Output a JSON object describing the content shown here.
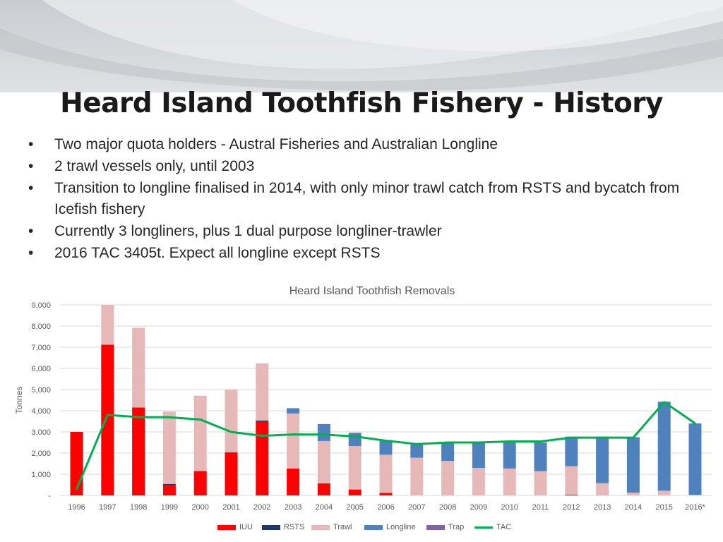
{
  "slide": {
    "title": "Heard Island Toothfish Fishery - History",
    "bullet_glyph": "•",
    "bullets": [
      "Two major quota holders - Austral Fisheries and Australian Longline",
      "2 trawl vessels only, until 2003",
      "Transition to longline finalised in 2014, with only minor trawl catch from RSTS and bycatch from Icefish fishery",
      "Currently 3 longliners, plus 1 dual purpose longliner-trawler",
      "2016 TAC 3405t.  Expect all longline except RSTS"
    ]
  },
  "chart_data": {
    "type": "bar",
    "stacked": true,
    "title": "Heard Island Toothfish Removals",
    "ylabel": "Tonnes",
    "xlabel": "",
    "ylim": [
      0,
      9000
    ],
    "yticks": [
      "-",
      "1,000",
      "2,000",
      "3,000",
      "4,000",
      "5,000",
      "6,000",
      "7,000",
      "8,000",
      "9,000"
    ],
    "grid": true,
    "legend_position": "bottom",
    "categories": [
      "1996",
      "1997",
      "1998",
      "1999",
      "2000",
      "2001",
      "2002",
      "2003",
      "2004",
      "2005",
      "2006",
      "2007",
      "2008",
      "2009",
      "2010",
      "2011",
      "2012",
      "2013",
      "2014",
      "2015",
      "2016*"
    ],
    "series": [
      {
        "name": "IUU",
        "color": "#ff0000",
        "values": [
          3000,
          7120,
          4150,
          480,
          1150,
          2020,
          3500,
          1270,
          540,
          280,
          120,
          0,
          0,
          0,
          0,
          0,
          0,
          0,
          0,
          0,
          0
        ]
      },
      {
        "name": "RSTS",
        "color": "#1f3864",
        "values": [
          0,
          0,
          0,
          60,
          0,
          20,
          40,
          0,
          30,
          0,
          0,
          0,
          0,
          0,
          0,
          0,
          30,
          0,
          0,
          0,
          0
        ]
      },
      {
        "name": "Trawl",
        "color": "#e6b9b8",
        "values": [
          0,
          1880,
          3770,
          3420,
          3560,
          2960,
          2700,
          2600,
          2000,
          2050,
          1800,
          1780,
          1630,
          1300,
          1270,
          1150,
          1350,
          580,
          130,
          220,
          30
        ]
      },
      {
        "name": "Longline",
        "color": "#4f81bd",
        "values": [
          0,
          0,
          0,
          0,
          0,
          0,
          0,
          250,
          800,
          630,
          700,
          620,
          850,
          1200,
          1280,
          1350,
          1400,
          2200,
          2620,
          4210,
          3370
        ]
      },
      {
        "name": "Trap",
        "color": "#8064a2",
        "values": [
          0,
          0,
          0,
          0,
          0,
          0,
          0,
          0,
          0,
          0,
          0,
          0,
          0,
          0,
          0,
          0,
          0,
          0,
          0,
          0,
          0
        ]
      },
      {
        "name": "TAC",
        "color": "#00b050",
        "type": "line",
        "values": [
          297,
          3800,
          3700,
          3690,
          3585,
          2995,
          2815,
          2879,
          2873,
          2787,
          2584,
          2427,
          2500,
          2500,
          2550,
          2550,
          2730,
          2730,
          2730,
          4410,
          3405
        ]
      }
    ]
  }
}
